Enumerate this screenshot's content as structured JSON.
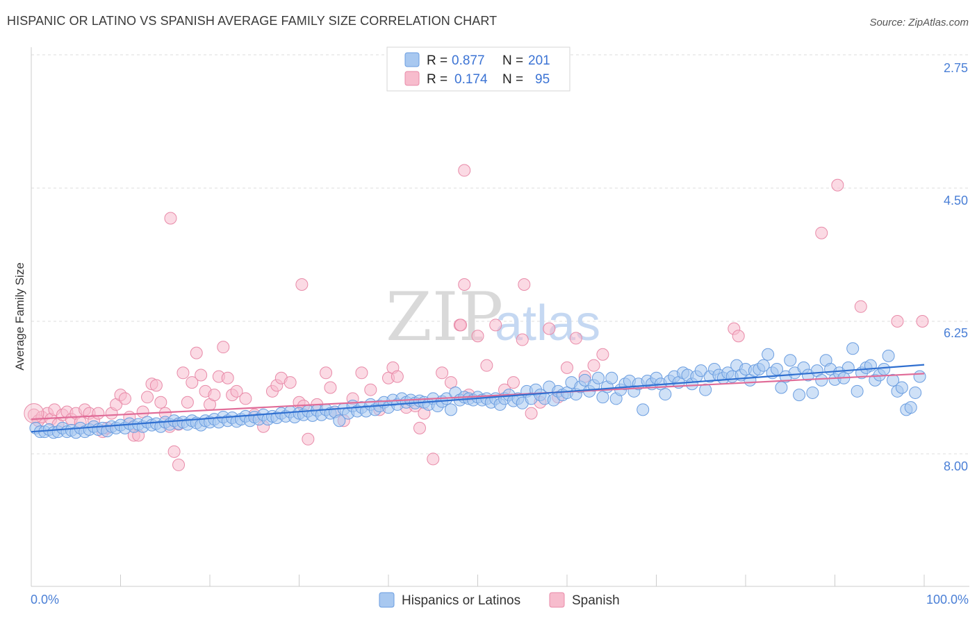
{
  "header": {
    "title": "HISPANIC OR LATINO VS SPANISH AVERAGE FAMILY SIZE CORRELATION CHART",
    "source": "Source: ZipAtlas.com"
  },
  "watermark": {
    "zip": "ZIP",
    "atlas": "atlas"
  },
  "legend": {
    "rows": [
      {
        "r_label": "R =",
        "r_value": "0.877",
        "n_label": "N =",
        "n_value": "201"
      },
      {
        "r_label": "R =",
        "r_value": "0.174",
        "n_label": "N =",
        "n_value": "95"
      }
    ]
  },
  "bottom_legend": {
    "items": [
      "Hispanics or Latinos",
      "Spanish"
    ]
  },
  "colors": {
    "blue_fill": "#a8c8f0",
    "blue_stroke": "#6a9de0",
    "blue_line": "#2f6fd0",
    "pink_fill": "#f7bccd",
    "pink_stroke": "#e88aa8",
    "pink_line": "#e06c98",
    "tick_text": "#4a7fd6",
    "grid": "#dddddd"
  },
  "chart_data": {
    "type": "scatter",
    "title": "HISPANIC OR LATINO VS SPANISH AVERAGE FAMILY SIZE CORRELATION CHART",
    "xlabel": "",
    "ylabel": "Average Family Size",
    "xlim": [
      0,
      100
    ],
    "ylim": [
      1.7,
      8.25
    ],
    "x_tick_labels": [
      "0.0%",
      "100.0%"
    ],
    "y_ticks": [
      2.75,
      4.5,
      6.25,
      8.0
    ],
    "y_tick_labels": [
      "2.75",
      "4.50",
      "6.25",
      "8.00"
    ],
    "grid": "horizontal dashed",
    "legend_position": "top-center",
    "series": [
      {
        "name": "Hispanics or Latinos",
        "r": 0.877,
        "n": 201,
        "trend": [
          [
            0,
            3.05
          ],
          [
            100,
            3.96
          ]
        ],
        "points": [
          [
            0.5,
            3.1
          ],
          [
            1,
            3.05
          ],
          [
            1.5,
            3.05
          ],
          [
            2,
            3.08
          ],
          [
            2.5,
            3.04
          ],
          [
            3,
            3.05
          ],
          [
            3.5,
            3.1
          ],
          [
            4,
            3.05
          ],
          [
            4.5,
            3.07
          ],
          [
            5,
            3.04
          ],
          [
            5.5,
            3.1
          ],
          [
            6,
            3.05
          ],
          [
            6.5,
            3.08
          ],
          [
            7,
            3.12
          ],
          [
            7.5,
            3.08
          ],
          [
            8,
            3.1
          ],
          [
            8.5,
            3.06
          ],
          [
            9,
            3.12
          ],
          [
            9.5,
            3.1
          ],
          [
            10,
            3.14
          ],
          [
            10.5,
            3.1
          ],
          [
            11,
            3.16
          ],
          [
            11.5,
            3.12
          ],
          [
            12,
            3.15
          ],
          [
            12.5,
            3.12
          ],
          [
            13,
            3.18
          ],
          [
            13.5,
            3.14
          ],
          [
            14,
            3.16
          ],
          [
            14.5,
            3.12
          ],
          [
            15,
            3.18
          ],
          [
            15.5,
            3.15
          ],
          [
            16,
            3.2
          ],
          [
            16.5,
            3.16
          ],
          [
            17,
            3.18
          ],
          [
            17.5,
            3.15
          ],
          [
            18,
            3.2
          ],
          [
            18.5,
            3.17
          ],
          [
            19,
            3.14
          ],
          [
            19.5,
            3.2
          ],
          [
            20,
            3.18
          ],
          [
            20.5,
            3.22
          ],
          [
            21,
            3.18
          ],
          [
            21.5,
            3.25
          ],
          [
            22,
            3.2
          ],
          [
            22.5,
            3.24
          ],
          [
            23,
            3.19
          ],
          [
            23.5,
            3.22
          ],
          [
            24,
            3.26
          ],
          [
            24.5,
            3.2
          ],
          [
            25,
            3.25
          ],
          [
            25.5,
            3.22
          ],
          [
            26,
            3.28
          ],
          [
            26.5,
            3.22
          ],
          [
            27,
            3.26
          ],
          [
            27.5,
            3.24
          ],
          [
            28,
            3.3
          ],
          [
            28.5,
            3.26
          ],
          [
            29,
            3.32
          ],
          [
            29.5,
            3.25
          ],
          [
            30,
            3.3
          ],
          [
            30.5,
            3.28
          ],
          [
            31,
            3.33
          ],
          [
            31.5,
            3.27
          ],
          [
            32,
            3.34
          ],
          [
            32.5,
            3.28
          ],
          [
            33,
            3.35
          ],
          [
            33.5,
            3.3
          ],
          [
            34,
            3.32
          ],
          [
            34.5,
            3.2
          ],
          [
            35,
            3.36
          ],
          [
            35.5,
            3.3
          ],
          [
            36,
            3.4
          ],
          [
            36.5,
            3.33
          ],
          [
            37,
            3.38
          ],
          [
            37.5,
            3.33
          ],
          [
            38,
            3.42
          ],
          [
            38.5,
            3.35
          ],
          [
            39,
            3.4
          ],
          [
            39.5,
            3.45
          ],
          [
            40,
            3.38
          ],
          [
            40.5,
            3.48
          ],
          [
            41,
            3.42
          ],
          [
            41.5,
            3.5
          ],
          [
            42,
            3.45
          ],
          [
            42.5,
            3.48
          ],
          [
            43,
            3.44
          ],
          [
            43.5,
            3.47
          ],
          [
            44,
            3.45
          ],
          [
            44.5,
            3.42
          ],
          [
            45,
            3.5
          ],
          [
            45.5,
            3.4
          ],
          [
            46,
            3.46
          ],
          [
            46.5,
            3.5
          ],
          [
            47,
            3.35
          ],
          [
            47.5,
            3.58
          ],
          [
            48,
            3.48
          ],
          [
            48.5,
            3.52
          ],
          [
            49,
            3.5
          ],
          [
            49.5,
            3.48
          ],
          [
            50,
            3.52
          ],
          [
            50.5,
            3.48
          ],
          [
            51,
            3.5
          ],
          [
            51.5,
            3.45
          ],
          [
            52,
            3.5
          ],
          [
            52.5,
            3.42
          ],
          [
            53,
            3.5
          ],
          [
            53.5,
            3.55
          ],
          [
            54,
            3.47
          ],
          [
            54.5,
            3.5
          ],
          [
            55,
            3.44
          ],
          [
            55.5,
            3.6
          ],
          [
            56,
            3.5
          ],
          [
            56.5,
            3.62
          ],
          [
            57,
            3.55
          ],
          [
            57.5,
            3.5
          ],
          [
            58,
            3.66
          ],
          [
            58.5,
            3.48
          ],
          [
            59,
            3.6
          ],
          [
            59.5,
            3.55
          ],
          [
            60,
            3.58
          ],
          [
            60.5,
            3.72
          ],
          [
            61,
            3.56
          ],
          [
            61.5,
            3.66
          ],
          [
            62,
            3.75
          ],
          [
            62.5,
            3.6
          ],
          [
            63,
            3.68
          ],
          [
            63.5,
            3.78
          ],
          [
            64,
            3.52
          ],
          [
            64.5,
            3.66
          ],
          [
            65,
            3.78
          ],
          [
            65.5,
            3.5
          ],
          [
            66,
            3.62
          ],
          [
            66.5,
            3.7
          ],
          [
            67,
            3.74
          ],
          [
            67.5,
            3.6
          ],
          [
            68,
            3.7
          ],
          [
            68.5,
            3.35
          ],
          [
            69,
            3.74
          ],
          [
            69.5,
            3.7
          ],
          [
            70,
            3.78
          ],
          [
            70.5,
            3.7
          ],
          [
            71,
            3.56
          ],
          [
            71.5,
            3.74
          ],
          [
            72,
            3.8
          ],
          [
            72.5,
            3.72
          ],
          [
            73,
            3.85
          ],
          [
            73.5,
            3.82
          ],
          [
            74,
            3.7
          ],
          [
            74.5,
            3.8
          ],
          [
            75,
            3.88
          ],
          [
            75.5,
            3.62
          ],
          [
            76,
            3.8
          ],
          [
            76.5,
            3.9
          ],
          [
            77,
            3.82
          ],
          [
            77.5,
            3.78
          ],
          [
            78,
            3.85
          ],
          [
            78.5,
            3.8
          ],
          [
            79,
            3.95
          ],
          [
            79.5,
            3.82
          ],
          [
            80,
            3.9
          ],
          [
            80.5,
            3.75
          ],
          [
            81,
            3.88
          ],
          [
            81.5,
            3.9
          ],
          [
            82,
            3.95
          ],
          [
            82.5,
            4.1
          ],
          [
            83,
            3.85
          ],
          [
            83.5,
            3.9
          ],
          [
            84,
            3.65
          ],
          [
            84.5,
            3.8
          ],
          [
            85,
            4.02
          ],
          [
            85.5,
            3.85
          ],
          [
            86,
            3.55
          ],
          [
            86.5,
            3.92
          ],
          [
            87,
            3.82
          ],
          [
            87.5,
            3.58
          ],
          [
            88,
            3.88
          ],
          [
            88.5,
            3.75
          ],
          [
            89,
            4.02
          ],
          [
            89.5,
            3.9
          ],
          [
            90,
            3.76
          ],
          [
            90.5,
            3.85
          ],
          [
            91,
            3.78
          ],
          [
            91.5,
            3.92
          ],
          [
            92,
            4.18
          ],
          [
            92.5,
            3.6
          ],
          [
            93,
            3.85
          ],
          [
            93.5,
            3.92
          ],
          [
            94,
            3.95
          ],
          [
            94.5,
            3.75
          ],
          [
            95,
            3.82
          ],
          [
            95.5,
            3.9
          ],
          [
            96,
            4.08
          ],
          [
            96.5,
            3.75
          ],
          [
            97,
            3.6
          ],
          [
            97.5,
            3.65
          ],
          [
            98,
            3.35
          ],
          [
            98.5,
            3.38
          ],
          [
            99,
            3.58
          ],
          [
            99.5,
            3.8
          ]
        ]
      },
      {
        "name": "Spanish",
        "r": 0.174,
        "n": 95,
        "trend": [
          [
            0,
            3.22
          ],
          [
            100,
            3.84
          ]
        ],
        "points": [
          [
            0.3,
            3.28
          ],
          [
            0.8,
            3.2
          ],
          [
            1.2,
            3.25
          ],
          [
            1.8,
            3.3
          ],
          [
            2.2,
            3.22
          ],
          [
            2.6,
            3.35
          ],
          [
            3,
            3.15
          ],
          [
            3.5,
            3.28
          ],
          [
            4,
            3.32
          ],
          [
            4.5,
            3.22
          ],
          [
            5,
            3.3
          ],
          [
            5.5,
            3.18
          ],
          [
            6,
            3.35
          ],
          [
            6.5,
            3.3
          ],
          [
            7,
            3.2
          ],
          [
            7.5,
            3.3
          ],
          [
            8,
            3.05
          ],
          [
            8.5,
            3.1
          ],
          [
            9,
            3.3
          ],
          [
            9.5,
            3.42
          ],
          [
            10,
            3.55
          ],
          [
            10.5,
            3.5
          ],
          [
            11,
            3.25
          ],
          [
            11.5,
            3.0
          ],
          [
            12,
            3.0
          ],
          [
            12.5,
            3.32
          ],
          [
            13,
            3.52
          ],
          [
            13.5,
            3.7
          ],
          [
            14,
            3.68
          ],
          [
            14.5,
            3.45
          ],
          [
            15,
            3.3
          ],
          [
            15.5,
            3.12
          ],
          [
            16,
            2.78
          ],
          [
            16.5,
            3.15
          ],
          [
            17,
            3.85
          ],
          [
            17.5,
            3.45
          ],
          [
            18,
            3.72
          ],
          [
            18.5,
            4.12
          ],
          [
            19,
            3.82
          ],
          [
            19.5,
            3.6
          ],
          [
            20,
            3.42
          ],
          [
            20.5,
            3.55
          ],
          [
            21,
            3.8
          ],
          [
            21.5,
            4.2
          ],
          [
            22,
            3.78
          ],
          [
            22.5,
            3.55
          ],
          [
            23,
            3.6
          ],
          [
            24,
            3.5
          ],
          [
            25,
            3.28
          ],
          [
            26,
            3.12
          ],
          [
            27,
            3.6
          ],
          [
            27.5,
            3.68
          ],
          [
            28,
            3.78
          ],
          [
            29,
            3.72
          ],
          [
            30,
            3.45
          ],
          [
            30.5,
            3.4
          ],
          [
            31,
            2.95
          ],
          [
            32,
            3.42
          ],
          [
            33,
            3.85
          ],
          [
            33.5,
            3.65
          ],
          [
            34,
            3.32
          ],
          [
            35,
            3.2
          ],
          [
            36,
            3.5
          ],
          [
            37,
            3.85
          ],
          [
            38,
            3.62
          ],
          [
            39,
            3.35
          ],
          [
            40,
            3.78
          ],
          [
            40.5,
            3.92
          ],
          [
            41,
            3.8
          ],
          [
            42,
            3.38
          ],
          [
            43,
            3.4
          ],
          [
            43.5,
            3.1
          ],
          [
            44,
            3.3
          ],
          [
            45,
            2.68
          ],
          [
            46,
            3.85
          ],
          [
            47,
            3.72
          ],
          [
            48,
            4.5
          ],
          [
            48.5,
            5.05
          ],
          [
            49,
            3.55
          ],
          [
            50,
            4.35
          ],
          [
            51,
            3.95
          ],
          [
            52,
            4.5
          ],
          [
            53,
            3.62
          ],
          [
            54,
            3.72
          ],
          [
            55,
            4.3
          ],
          [
            56,
            3.3
          ],
          [
            57,
            3.45
          ],
          [
            58,
            4.45
          ],
          [
            59,
            3.52
          ],
          [
            60,
            3.92
          ],
          [
            61,
            4.32
          ],
          [
            62,
            3.8
          ],
          [
            63,
            3.95
          ],
          [
            64,
            4.1
          ]
        ]
      }
    ],
    "pink_outliers": [
      [
        48.5,
        6.6
      ],
      [
        15.6,
        5.95
      ],
      [
        30.3,
        5.05
      ],
      [
        55.2,
        5.05
      ],
      [
        78.7,
        4.45
      ],
      [
        92.9,
        4.75
      ],
      [
        97,
        4.55
      ],
      [
        88.5,
        5.75
      ],
      [
        90.3,
        6.4
      ],
      [
        99.8,
        4.55
      ],
      [
        79.2,
        4.35
      ],
      [
        48.1,
        4.5
      ],
      [
        16.5,
        2.6
      ]
    ]
  }
}
